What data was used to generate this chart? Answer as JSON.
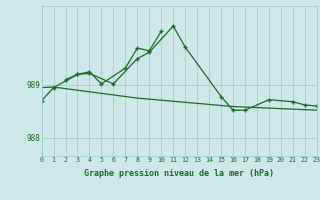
{
  "background_color": "#cce8e8",
  "plot_bg_color": "#cce8e8",
  "grid_color": "#99cccc",
  "line_color": "#1a6b2a",
  "xlabel": "Graphe pression niveau de la mer (hPa)",
  "ylabel_ticks": [
    988,
    989
  ],
  "xlim": [
    0,
    23
  ],
  "ylim": [
    987.65,
    990.5
  ],
  "s1_x": [
    0,
    1,
    3,
    4,
    6,
    8,
    9,
    11,
    12,
    15,
    16,
    17,
    19,
    21,
    22,
    23
  ],
  "s1_y": [
    988.7,
    988.95,
    989.2,
    989.22,
    989.02,
    989.5,
    989.62,
    990.12,
    989.72,
    988.78,
    988.52,
    988.52,
    988.72,
    988.68,
    988.62,
    988.6
  ],
  "s2_x": [
    2,
    3,
    4,
    5,
    7,
    8,
    9,
    10
  ],
  "s2_y": [
    989.1,
    989.2,
    989.25,
    989.02,
    989.32,
    989.7,
    989.65,
    990.02
  ],
  "s3_x": [
    0,
    1,
    2,
    3,
    4,
    5,
    6,
    7,
    8,
    9,
    10,
    11,
    12,
    13,
    14,
    15,
    16,
    17,
    18,
    19,
    20,
    21,
    22,
    23
  ],
  "s3_y": [
    988.95,
    988.96,
    988.93,
    988.9,
    988.87,
    988.84,
    988.81,
    988.78,
    988.75,
    988.73,
    988.71,
    988.69,
    988.67,
    988.65,
    988.63,
    988.61,
    988.59,
    988.58,
    988.57,
    988.56,
    988.55,
    988.54,
    988.53,
    988.52
  ]
}
